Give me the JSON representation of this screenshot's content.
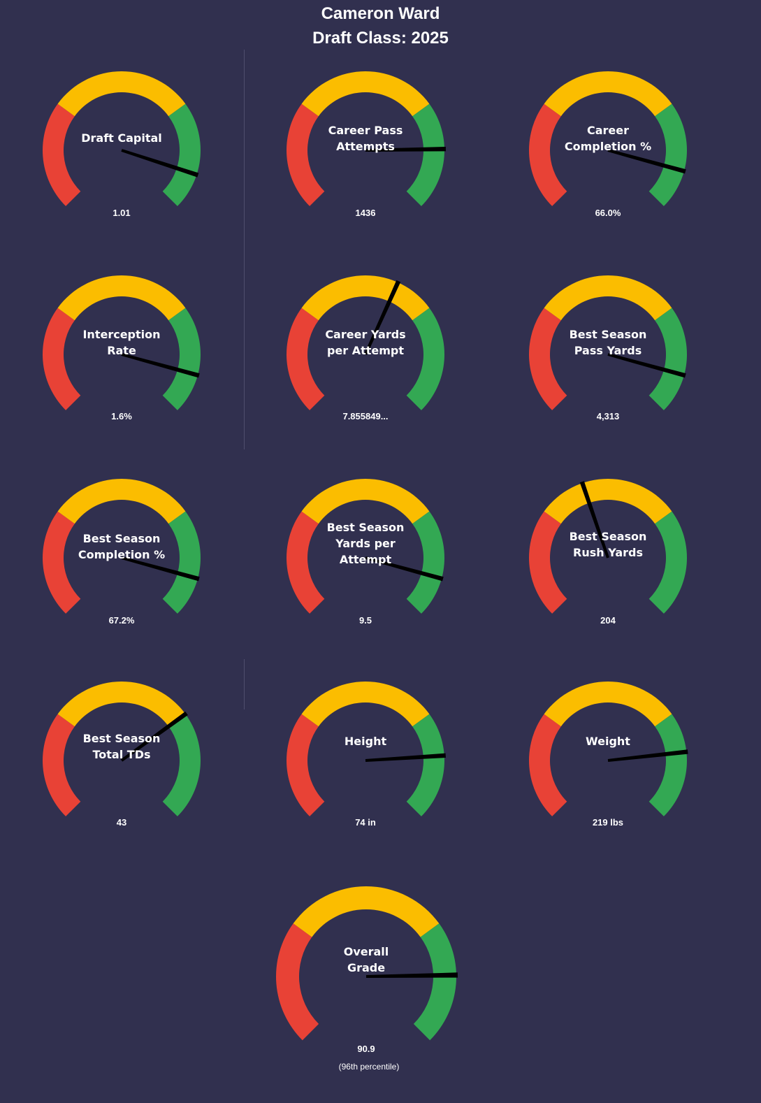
{
  "header": {
    "player_name": "Cameron Ward",
    "draft_class": "Draft Class: 2025"
  },
  "colors": {
    "background": "#31304f",
    "low_band": "#e84236",
    "mid_band": "#fbbd00",
    "high_band": "#33a853",
    "needle": "#000000",
    "text": "#ffffff"
  },
  "chart_data": [
    {
      "type": "gauge",
      "title": [
        "Draft Capital"
      ],
      "value_label": "1.01",
      "bands": [
        "low",
        "mid",
        "high"
      ],
      "needle_position": 0.9,
      "needle_band": "high"
    },
    {
      "type": "gauge",
      "title": [
        "Career Pass",
        "Attempts"
      ],
      "value_label": "1436",
      "bands": [
        "low",
        "mid",
        "high"
      ],
      "needle_position": 0.83,
      "needle_band": "high"
    },
    {
      "type": "gauge",
      "title": [
        "Career",
        "Completion %"
      ],
      "value_label": "66.0%",
      "bands": [
        "low",
        "mid",
        "high"
      ],
      "needle_position": 0.89,
      "needle_band": "high"
    },
    {
      "type": "gauge",
      "title": [
        "Interception",
        "Rate"
      ],
      "value_label": "1.6%",
      "bands": [
        "low",
        "mid",
        "high"
      ],
      "needle_position": 0.89,
      "needle_band": "high"
    },
    {
      "type": "gauge",
      "title": [
        "Career Yards",
        "per Attempt"
      ],
      "value_label": "7.855849...",
      "bands": [
        "low",
        "mid",
        "high"
      ],
      "needle_position": 0.59,
      "needle_band": "mid"
    },
    {
      "type": "gauge",
      "title": [
        "Best Season",
        "Pass Yards"
      ],
      "value_label": "4,313",
      "bands": [
        "low",
        "mid",
        "high"
      ],
      "needle_position": 0.89,
      "needle_band": "high"
    },
    {
      "type": "gauge",
      "title": [
        "Best Season",
        "Completion %"
      ],
      "value_label": "67.2%",
      "bands": [
        "low",
        "mid",
        "high"
      ],
      "needle_position": 0.89,
      "needle_band": "high"
    },
    {
      "type": "gauge",
      "title": [
        "Best Season",
        "Yards per",
        "Attempt"
      ],
      "value_label": "9.5",
      "bands": [
        "low",
        "mid",
        "high"
      ],
      "needle_position": 0.89,
      "needle_band": "high"
    },
    {
      "type": "gauge",
      "title": [
        "Best Season",
        "Rush Yards"
      ],
      "value_label": "204",
      "bands": [
        "low",
        "mid",
        "high"
      ],
      "needle_position": 0.43,
      "needle_band": "mid"
    },
    {
      "type": "gauge",
      "title": [
        "Best Season",
        "Total TDs"
      ],
      "value_label": "43",
      "bands": [
        "low",
        "mid",
        "high"
      ],
      "needle_position": 0.7,
      "needle_band": "high"
    },
    {
      "type": "gauge",
      "title": [
        "Height"
      ],
      "value_label": "74 in",
      "bands": [
        "low",
        "mid",
        "high"
      ],
      "needle_position": 0.82,
      "needle_band": "high"
    },
    {
      "type": "gauge",
      "title": [
        "Weight"
      ],
      "value_label": "219 lbs",
      "bands": [
        "low",
        "mid",
        "high"
      ],
      "needle_position": 0.81,
      "needle_band": "high"
    },
    {
      "type": "gauge",
      "title": [
        "Overall",
        "Grade"
      ],
      "value_label": "90.9",
      "note": "(96th  percentile)",
      "bands": [
        "low",
        "mid",
        "high"
      ],
      "needle_position": 0.83,
      "needle_band": "high"
    }
  ]
}
